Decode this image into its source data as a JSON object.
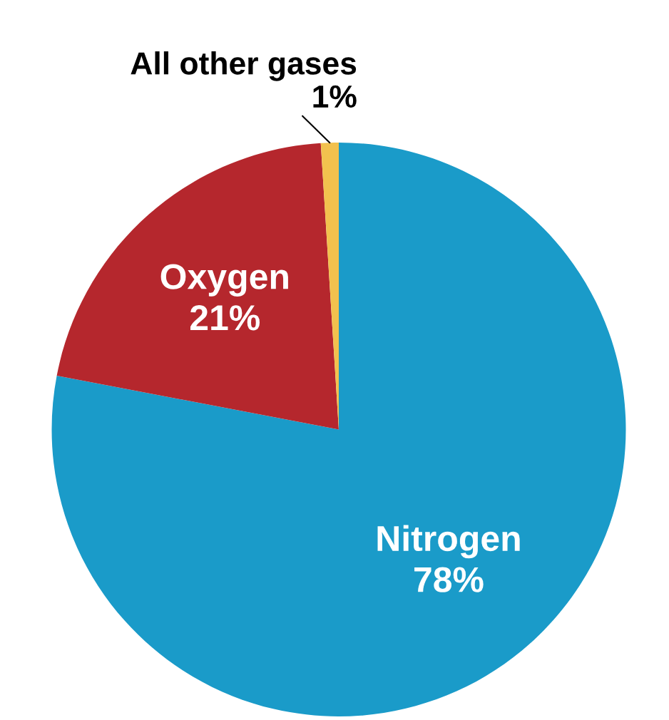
{
  "chart_data": {
    "type": "pie",
    "categories": [
      "Nitrogen",
      "Oxygen",
      "All other gases"
    ],
    "values": [
      78,
      21,
      1
    ],
    "colors": [
      "#1a9bc9",
      "#b5272d",
      "#f2c14e"
    ],
    "value_labels": [
      "78%",
      "21%",
      "1%"
    ]
  }
}
